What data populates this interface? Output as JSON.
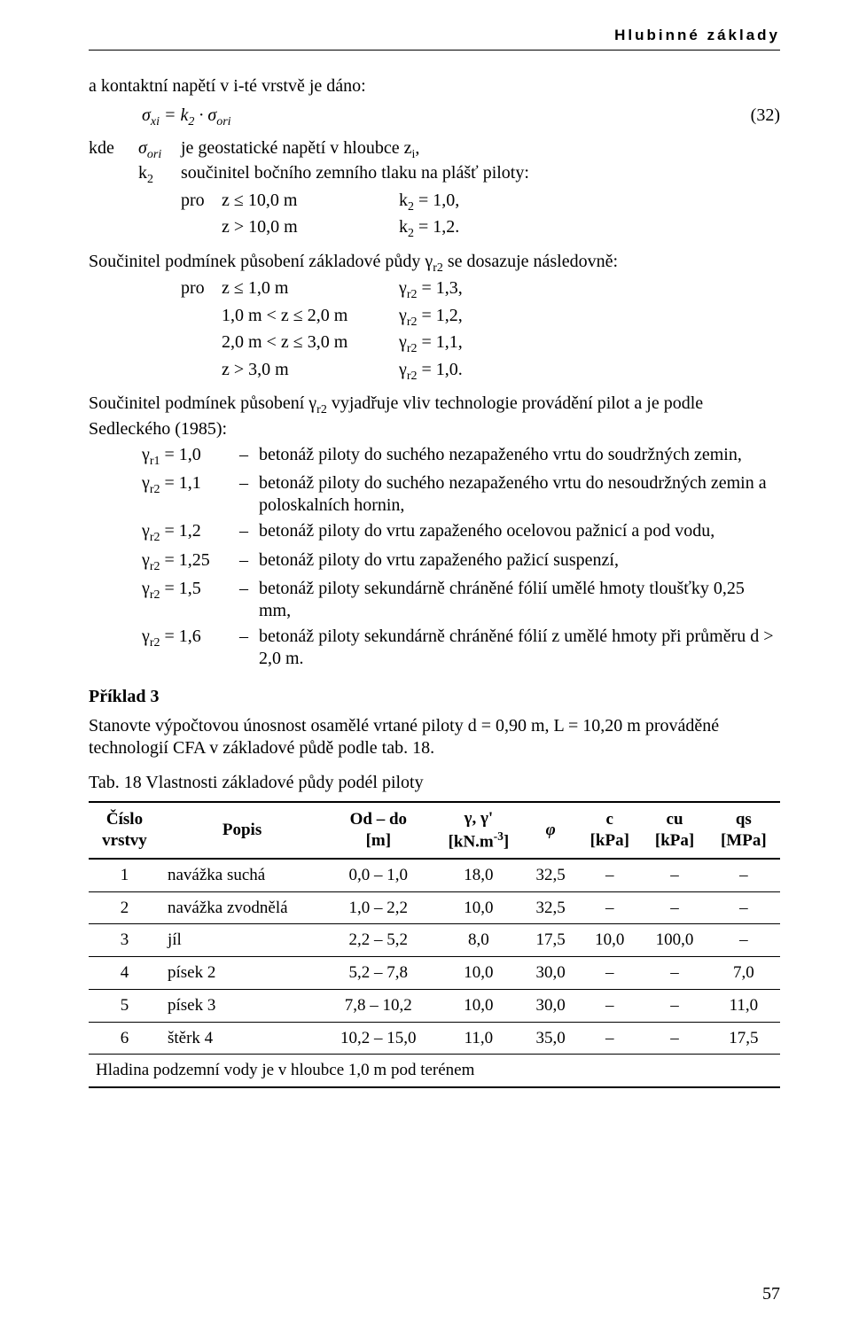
{
  "running_head": "Hlubinné základy",
  "page_number": "57",
  "intro": "a kontaktní napětí v i-té vrstvě je dáno:",
  "eq32": {
    "lhs": "σₓᵢ = k₂ · σₒᵣᵢ",
    "num": "(32)"
  },
  "where": {
    "kde": "kde",
    "sig_sym": "σₒᵣᵢ",
    "sig_desc": "je geostatické napětí v hloubce zᵢ,",
    "k2_sym": "k₂",
    "k2_desc": "součinitel bočního zemního tlaku na plášť piloty:",
    "k2_line1_pro": "pro",
    "k2_line1_cond": "z ≤ 10,0 m",
    "k2_line1_val": "k₂ = 1,0,",
    "k2_line2_cond": "z > 10,0 m",
    "k2_line2_val": "k₂ = 1,2."
  },
  "gr2_intro": "Součinitel podmínek působení základové půdy γᵣ₂ se dosazuje následovně:",
  "gr2_rows": [
    {
      "pro": "pro",
      "range": "z ≤ 1,0 m",
      "val": "γᵣ₂ = 1,3,"
    },
    {
      "pro": "",
      "range": "1,0 m < z ≤ 2,0 m",
      "val": "γᵣ₂ = 1,2,"
    },
    {
      "pro": "",
      "range": "2,0 m < z ≤ 3,0 m",
      "val": "γᵣ₂ = 1,1,"
    },
    {
      "pro": "",
      "range": "z > 3,0 m",
      "val": "γᵣ₂ = 1,0."
    }
  ],
  "sedlecky_intro": "Součinitel podmínek působení γᵣ₂ vyjadřuje vliv technologie provádění pilot a je podle Sedleckého (1985):",
  "gamma_list": [
    {
      "sym": "γᵣ₁ = 1,0",
      "desc": "betonáž piloty do suchého nezapaženého vrtu do soudržných zemin,"
    },
    {
      "sym": "γᵣ₂ = 1,1",
      "desc": "betonáž piloty do suchého nezapaženého vrtu do nesoudržných zemin a poloskalních hornin,"
    },
    {
      "sym": "γᵣ₂ = 1,2",
      "desc": "betonáž piloty do vrtu zapaženého ocelovou pažnicí a pod vodu,"
    },
    {
      "sym": "γᵣ₂ = 1,25",
      "desc": "betonáž piloty do vrtu zapaženého pažicí suspenzí,"
    },
    {
      "sym": "γᵣ₂ = 1,5",
      "desc": "betonáž piloty sekundárně chráněné fólií umělé hmoty tloušťky 0,25 mm,"
    },
    {
      "sym": "γᵣ₂ = 1,6",
      "desc": "betonáž piloty sekundárně chráněné fólií z umělé hmoty při průměru d > 2,0 m."
    }
  ],
  "priklad_head": "Příklad 3",
  "priklad_text": "Stanovte výpočtovou únosnost osamělé vrtané piloty d = 0,90 m, L = 10,20 m prováděné technologií CFA v základové půdě podle tab. 18.",
  "table_caption": "Tab. 18  Vlastnosti základové půdy podél piloty",
  "table": {
    "columns": [
      {
        "l1": "Číslo",
        "l2": "vrstvy"
      },
      {
        "l1": "Popis",
        "l2": ""
      },
      {
        "l1": "Od – do",
        "l2": "[m]"
      },
      {
        "l1": "γ, γ'",
        "l2": "[kN.m⁻³]"
      },
      {
        "l1": "φ",
        "l2": ""
      },
      {
        "l1": "c",
        "l2": "[kPa]"
      },
      {
        "l1": "cu",
        "l2": "[kPa]"
      },
      {
        "l1": "qs",
        "l2": "[MPa]"
      }
    ],
    "rows": [
      [
        "1",
        "navážka suchá",
        "0,0 – 1,0",
        "18,0",
        "32,5",
        "–",
        "–",
        "–"
      ],
      [
        "2",
        "navážka zvodnělá",
        "1,0 – 2,2",
        "10,0",
        "32,5",
        "–",
        "–",
        "–"
      ],
      [
        "3",
        "jíl",
        "2,2 – 5,2",
        "8,0",
        "17,5",
        "10,0",
        "100,0",
        "–"
      ],
      [
        "4",
        "písek 2",
        "5,2 – 7,8",
        "10,0",
        "30,0",
        "–",
        "–",
        "7,0"
      ],
      [
        "5",
        "písek 3",
        "7,8 – 10,2",
        "10,0",
        "30,0",
        "–",
        "–",
        "11,0"
      ],
      [
        "6",
        "štěrk 4",
        "10,2 – 15,0",
        "11,0",
        "35,0",
        "–",
        "–",
        "17,5"
      ]
    ],
    "footer": "Hladina podzemní vody je v hloubce 1,0 m pod terénem"
  }
}
